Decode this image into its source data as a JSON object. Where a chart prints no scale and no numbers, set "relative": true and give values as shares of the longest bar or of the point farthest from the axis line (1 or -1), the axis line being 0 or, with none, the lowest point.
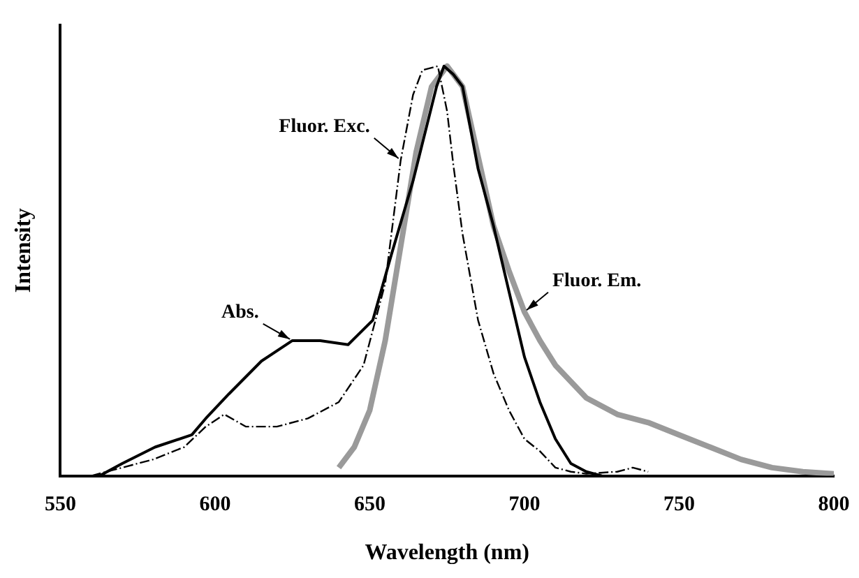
{
  "chart_data": {
    "type": "line",
    "xlabel": "Wavelength (nm)",
    "ylabel": "Intensity",
    "relative": true,
    "xlim": [
      550,
      800
    ],
    "xticks": [
      550,
      600,
      650,
      700,
      750,
      800
    ],
    "grid": false,
    "legend": false,
    "marker": "none",
    "series": [
      {
        "name": "Abs.",
        "color": "#000000",
        "line_style": "solid",
        "x": [
          562.7,
          570,
          580.6,
          592.5,
          597,
          604.5,
          615,
          625,
          634,
          643,
          651,
          657,
          664,
          671.6,
          674,
          677,
          680,
          685,
          690,
          695,
          700,
          705,
          710,
          715,
          720,
          725
        ],
        "values": [
          0,
          0.03,
          0.07,
          0.1,
          0.14,
          0.2,
          0.28,
          0.33,
          0.33,
          0.32,
          0.38,
          0.54,
          0.72,
          0.95,
          1,
          0.98,
          0.95,
          0.75,
          0.61,
          0.45,
          0.29,
          0.18,
          0.09,
          0.03,
          0.01,
          0
        ]
      },
      {
        "name": "Fluor. Exc.",
        "color": "#000000",
        "line_style": "dashed",
        "x": [
          560,
          570,
          580,
          590,
          597,
          603,
          610,
          620,
          630,
          640,
          648,
          655,
          660,
          664,
          667,
          672,
          675,
          677,
          680,
          685,
          690,
          695,
          700,
          705,
          710,
          715,
          720,
          730,
          735,
          740
        ],
        "values": [
          0,
          0.02,
          0.04,
          0.07,
          0.12,
          0.15,
          0.12,
          0.12,
          0.14,
          0.18,
          0.27,
          0.47,
          0.77,
          0.93,
          0.99,
          1,
          0.89,
          0.76,
          0.59,
          0.38,
          0.25,
          0.16,
          0.09,
          0.06,
          0.02,
          0.01,
          0.005,
          0.01,
          0.02,
          0.01
        ]
      },
      {
        "name": "Fluor. Em.",
        "color": "#9a9a9a",
        "line_style": "solid",
        "x": [
          640,
          645,
          650,
          655,
          660,
          665,
          670,
          675,
          680,
          685,
          690,
          695,
          700,
          705,
          710,
          720,
          730,
          740,
          750,
          760,
          770,
          780,
          790,
          800
        ],
        "values": [
          0.02,
          0.07,
          0.16,
          0.33,
          0.56,
          0.79,
          0.95,
          1,
          0.95,
          0.78,
          0.61,
          0.5,
          0.4,
          0.33,
          0.27,
          0.19,
          0.15,
          0.13,
          0.1,
          0.07,
          0.04,
          0.02,
          0.01,
          0.005
        ]
      }
    ]
  }
}
